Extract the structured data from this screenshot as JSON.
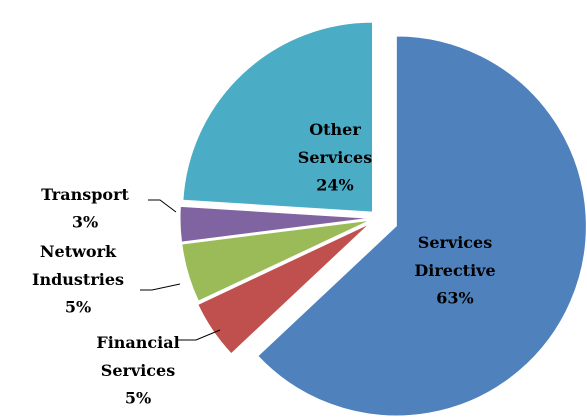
{
  "chart_data": {
    "type": "pie",
    "categories": [
      "Services Directive",
      "Financial Services",
      "Network Industries",
      "Transport",
      "Other Services"
    ],
    "values": [
      63,
      5,
      5,
      3,
      24
    ],
    "value_labels": [
      "63%",
      "5%",
      "5%",
      "3%",
      "24%"
    ],
    "colors": [
      "#4f81bd",
      "#c0504d",
      "#9bbb59",
      "#8064a2",
      "#4bacc6"
    ]
  }
}
